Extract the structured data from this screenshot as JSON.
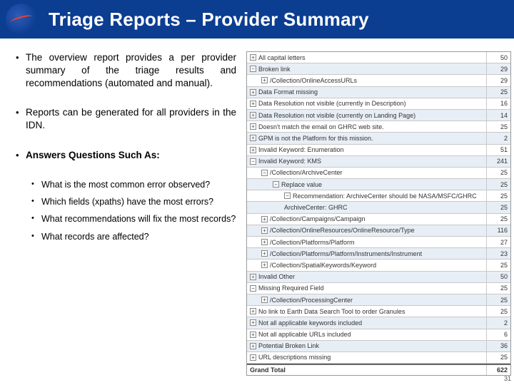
{
  "header": {
    "title": "Triage Reports – Provider Summary"
  },
  "bullets": [
    {
      "text": "The overview report provides a per provider summary of the triage results and recommendations (automated and manual).",
      "bold": false
    },
    {
      "text": "Reports can be generated for all providers in the IDN.",
      "bold": false
    },
    {
      "text": "Answers Questions Such As:",
      "bold": true,
      "sub": [
        "What is the most common error observed?",
        "Which fields (xpaths) have the most errors?",
        "What recommendations will fix the most records?",
        "What records are affected?"
      ]
    }
  ],
  "table": {
    "rows": [
      {
        "label": "All capital letters",
        "val": "50",
        "indent": 1,
        "exp": "+",
        "alt": "even"
      },
      {
        "label": "Broken link",
        "val": "29",
        "indent": 1,
        "exp": "−",
        "alt": "odd"
      },
      {
        "label": "/Collection/OnlineAccessURLs",
        "val": "29",
        "indent": 2,
        "exp": "+",
        "alt": "even"
      },
      {
        "label": "Data Format missing",
        "val": "25",
        "indent": 1,
        "exp": "+",
        "alt": "odd"
      },
      {
        "label": "Data Resolution not visible (currently in Description)",
        "val": "16",
        "indent": 1,
        "exp": "+",
        "alt": "even"
      },
      {
        "label": "Data Resolution not visible (currently on Landing Page)",
        "val": "14",
        "indent": 1,
        "exp": "+",
        "alt": "odd"
      },
      {
        "label": "Doesn't match the email on GHRC web site.",
        "val": "25",
        "indent": 1,
        "exp": "+",
        "alt": "even"
      },
      {
        "label": "GPM is not the Platform for this mission.",
        "val": "2",
        "indent": 1,
        "exp": "+",
        "alt": "odd"
      },
      {
        "label": "Invalid Keyword: Enumeration",
        "val": "51",
        "indent": 1,
        "exp": "+",
        "alt": "even"
      },
      {
        "label": "Invalid Keyword: KMS",
        "val": "241",
        "indent": 1,
        "exp": "−",
        "alt": "odd"
      },
      {
        "label": "/Collection/ArchiveCenter",
        "val": "25",
        "indent": 2,
        "exp": "−",
        "alt": "even"
      },
      {
        "label": "Replace value",
        "val": "25",
        "indent": 3,
        "exp": "−",
        "alt": "odd"
      },
      {
        "label": "Recommendation: ArchiveCenter should be NASA/MSFC/GHRC",
        "val": "25",
        "indent": 4,
        "exp": "−",
        "alt": "even"
      },
      {
        "label": "ArchiveCenter: GHRC",
        "val": "25",
        "indent": 4,
        "exp": "",
        "alt": "odd"
      },
      {
        "label": "/Collection/Campaigns/Campaign",
        "val": "25",
        "indent": 2,
        "exp": "+",
        "alt": "even"
      },
      {
        "label": "/Collection/OnlineResources/OnlineResource/Type",
        "val": "116",
        "indent": 2,
        "exp": "+",
        "alt": "odd"
      },
      {
        "label": "/Collection/Platforms/Platform",
        "val": "27",
        "indent": 2,
        "exp": "+",
        "alt": "even"
      },
      {
        "label": "/Collection/Platforms/Platform/Instruments/Instrument",
        "val": "23",
        "indent": 2,
        "exp": "+",
        "alt": "odd"
      },
      {
        "label": "/Collection/SpatialKeywords/Keyword",
        "val": "25",
        "indent": 2,
        "exp": "+",
        "alt": "even"
      },
      {
        "label": "Invalid Other",
        "val": "50",
        "indent": 1,
        "exp": "+",
        "alt": "odd"
      },
      {
        "label": "Missing Required Field",
        "val": "25",
        "indent": 1,
        "exp": "−",
        "alt": "even"
      },
      {
        "label": "/Collection/ProcessingCenter",
        "val": "25",
        "indent": 2,
        "exp": "+",
        "alt": "odd"
      },
      {
        "label": "No link to Earth Data Search Tool to order Granules",
        "val": "25",
        "indent": 1,
        "exp": "+",
        "alt": "even"
      },
      {
        "label": "Not all applicable keywords included",
        "val": "2",
        "indent": 1,
        "exp": "+",
        "alt": "odd"
      },
      {
        "label": "Not all applicable URLs included",
        "val": "6",
        "indent": 1,
        "exp": "+",
        "alt": "even"
      },
      {
        "label": "Potential Broken Link",
        "val": "36",
        "indent": 1,
        "exp": "+",
        "alt": "odd"
      },
      {
        "label": "URL descriptions missing",
        "val": "25",
        "indent": 1,
        "exp": "+",
        "alt": "even"
      }
    ],
    "grand_total": {
      "label": "Grand Total",
      "val": "622"
    }
  },
  "page_number": "31"
}
